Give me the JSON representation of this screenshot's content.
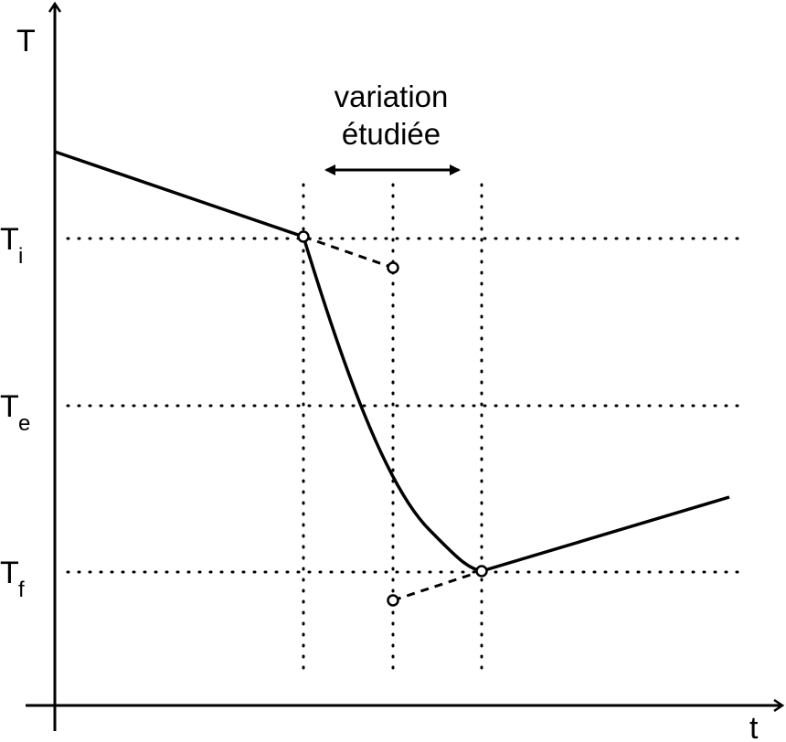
{
  "axes": {
    "y_label": "T",
    "x_label": "t"
  },
  "levels": [
    {
      "symbol": "T",
      "subscript": "i"
    },
    {
      "symbol": "T",
      "subscript": "e"
    },
    {
      "symbol": "T",
      "subscript": "f"
    }
  ],
  "annotation": {
    "line1": "variation",
    "line2": "étudiée"
  },
  "colors": {
    "ink": "#000000",
    "background": "#ffffff"
  }
}
